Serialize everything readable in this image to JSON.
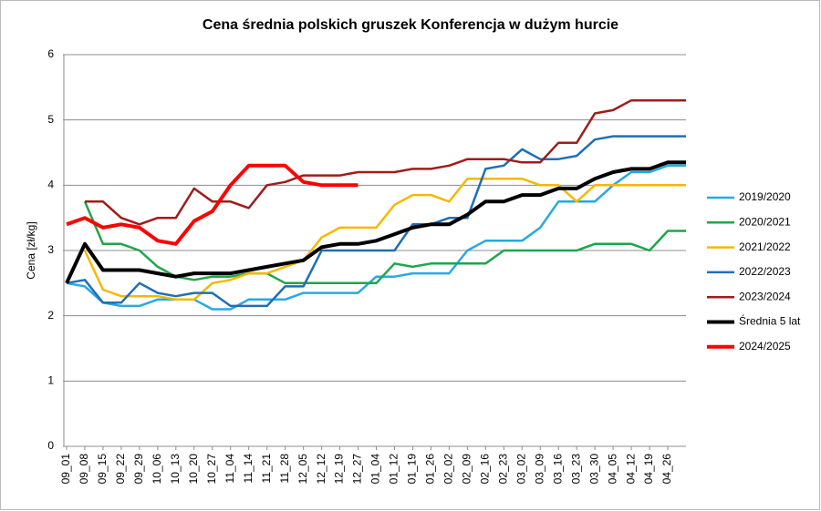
{
  "chart_data": {
    "type": "line",
    "title": "Cena średnia polskich gruszek Konferencja w dużym hurcie",
    "y_label": "Cena [zł/kg]",
    "categories": [
      "09_01",
      "09_08",
      "09_15",
      "09_22",
      "09_29",
      "10_06",
      "10_13",
      "10_20",
      "10_27",
      "11_04",
      "11_14",
      "11_21",
      "11_28",
      "12_05",
      "12_12",
      "12_19",
      "12_27",
      "01_04",
      "01_12",
      "01_19",
      "01_26",
      "02_02",
      "02_09",
      "02_16",
      "02_23",
      "03_02",
      "03_09",
      "03_16",
      "03_23",
      "03_30",
      "04_05",
      "04_12",
      "04_19",
      "04_26",
      null
    ],
    "ylim": [
      0,
      6
    ],
    "yticks": [
      0,
      1,
      2,
      3,
      4,
      5,
      6
    ],
    "grid": true,
    "legend": "right",
    "series": [
      {
        "name": "2019/2020",
        "color": "#29a9e0",
        "width": 2.5,
        "values": [
          2.5,
          2.45,
          2.2,
          2.15,
          2.15,
          2.25,
          2.25,
          2.25,
          2.1,
          2.1,
          2.25,
          2.25,
          2.25,
          2.35,
          2.35,
          2.35,
          2.35,
          2.6,
          2.6,
          2.65,
          2.65,
          2.65,
          3.0,
          3.15,
          3.15,
          3.15,
          3.35,
          3.75,
          3.75,
          3.75,
          4.0,
          4.2,
          4.2,
          4.3,
          4.3
        ]
      },
      {
        "name": "2020/2021",
        "color": "#1ea64a",
        "width": 2.5,
        "values": [
          null,
          3.75,
          3.1,
          3.1,
          3.0,
          2.75,
          2.6,
          2.55,
          2.6,
          2.6,
          2.65,
          2.65,
          2.5,
          2.5,
          2.5,
          2.5,
          2.5,
          2.5,
          2.8,
          2.75,
          2.8,
          2.8,
          2.8,
          2.8,
          3.0,
          3.0,
          3.0,
          3.0,
          3.0,
          3.1,
          3.1,
          3.1,
          3.0,
          3.3,
          3.3
        ]
      },
      {
        "name": "2021/2022",
        "color": "#f5b800",
        "width": 2.5,
        "values": [
          null,
          3.0,
          2.4,
          2.3,
          2.3,
          2.3,
          2.25,
          2.25,
          2.5,
          2.55,
          2.65,
          2.65,
          2.75,
          2.85,
          3.2,
          3.35,
          3.35,
          3.35,
          3.7,
          3.85,
          3.85,
          3.75,
          4.1,
          4.1,
          4.1,
          4.1,
          4.0,
          4.0,
          3.75,
          4.0,
          4.0,
          4.0,
          4.0,
          4.0,
          4.0
        ]
      },
      {
        "name": "2022/2023",
        "color": "#1f6fb5",
        "width": 2.5,
        "values": [
          2.5,
          2.55,
          2.2,
          2.2,
          2.5,
          2.35,
          2.3,
          2.35,
          2.35,
          2.15,
          2.15,
          2.15,
          2.45,
          2.45,
          3.0,
          3.0,
          3.0,
          3.0,
          3.0,
          3.4,
          3.4,
          3.5,
          3.5,
          4.25,
          4.3,
          4.55,
          4.4,
          4.4,
          4.45,
          4.7,
          4.75,
          4.75,
          4.75,
          4.75,
          4.75
        ]
      },
      {
        "name": "2023/2024",
        "color": "#a01c1c",
        "width": 2.5,
        "values": [
          null,
          3.75,
          3.75,
          3.5,
          3.4,
          3.5,
          3.5,
          3.95,
          3.75,
          3.75,
          3.65,
          4.0,
          4.05,
          4.15,
          4.15,
          4.15,
          4.2,
          4.2,
          4.2,
          4.25,
          4.25,
          4.3,
          4.4,
          4.4,
          4.4,
          4.35,
          4.35,
          4.65,
          4.65,
          5.1,
          5.15,
          5.3,
          5.3,
          5.3,
          5.3
        ]
      },
      {
        "name": "Średnia 5 lat",
        "color": "#000000",
        "width": 4,
        "values": [
          2.5,
          3.1,
          2.7,
          2.7,
          2.7,
          2.65,
          2.6,
          2.65,
          2.65,
          2.65,
          2.7,
          2.75,
          2.8,
          2.85,
          3.05,
          3.1,
          3.1,
          3.15,
          3.25,
          3.35,
          3.4,
          3.4,
          3.55,
          3.75,
          3.75,
          3.85,
          3.85,
          3.95,
          3.95,
          4.1,
          4.2,
          4.25,
          4.25,
          4.35,
          4.35
        ]
      },
      {
        "name": "2024/2025",
        "color": "#ff0000",
        "width": 4,
        "values": [
          3.4,
          3.5,
          3.35,
          3.4,
          3.35,
          3.15,
          3.1,
          3.45,
          3.6,
          4.0,
          4.3,
          4.3,
          4.3,
          4.05,
          4.0,
          4.0,
          4.0,
          null,
          null,
          null,
          null,
          null,
          null,
          null,
          null,
          null,
          null,
          null,
          null,
          null,
          null,
          null,
          null,
          null,
          null
        ]
      }
    ]
  }
}
